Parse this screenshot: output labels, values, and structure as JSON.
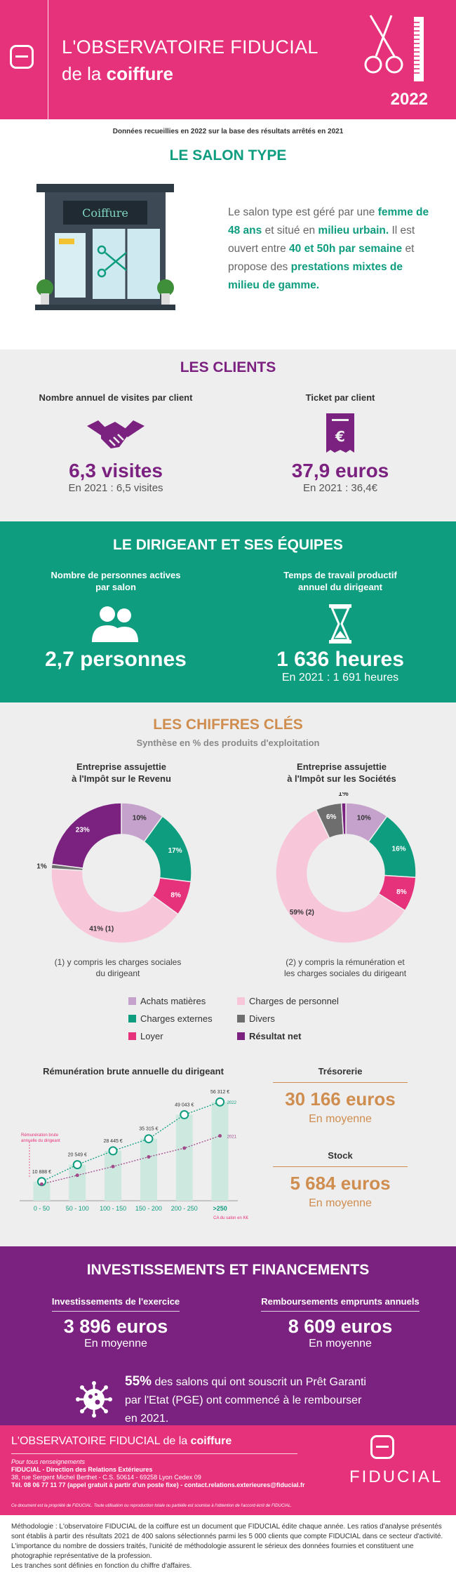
{
  "header": {
    "title_line1": "L'OBSERVATOIRE FIDUCIAL",
    "title_line2_prefix": "de la",
    "title_line2_bold": "coiffure",
    "year": "2022"
  },
  "source_note": "Données recueillies en 2022 sur la base des résultats arrêtés en 2021",
  "salon": {
    "title": "LE SALON TYPE",
    "sign": "Coiffure",
    "text_1": "Le salon type est géré par une",
    "bold_1": "femme de 48 ans",
    "text_2": "et situé en",
    "bold_2": "milieu urbain.",
    "text_3": "Il est ouvert entre",
    "bold_3": "40 et 50h par semaine",
    "text_4": "et propose des",
    "bold_4": "prestations mixtes de milieu de gamme."
  },
  "clients": {
    "title": "LES CLIENTS",
    "visits_label": "Nombre annuel de visites par client",
    "visits_value": "6,3 visites",
    "visits_prev": "En 2021 : 6,5 visites",
    "ticket_label": "Ticket par client",
    "ticket_value": "37,9 euros",
    "ticket_prev": "En 2021 : 36,4€"
  },
  "dirigeant": {
    "title": "LE DIRIGEANT ET SES ÉQUIPES",
    "staff_label_1": "Nombre de personnes actives",
    "staff_label_2": "par salon",
    "staff_value": "2,7 personnes",
    "time_label_1": "Temps de travail productif",
    "time_label_2": "annuel du dirigeant",
    "time_value": "1 636 heures",
    "time_prev": "En 2021 : 1 691 heures"
  },
  "chiffres": {
    "title": "LES CHIFFRES CLÉS",
    "subtitle": "Synthèse en % des produits d'exploitation",
    "ir_title_1": "Entreprise assujettie",
    "ir_title_2": "à l'Impôt sur le Revenu",
    "is_title_1": "Entreprise assujettie",
    "is_title_2": "à l'Impôt sur les Sociétés",
    "ir_note_1": "(1) y compris les charges sociales",
    "ir_note_2": "du dirigeant",
    "is_note_1": "(2) y compris la rémunération et",
    "is_note_2": "les charges sociales du dirigeant",
    "legend": {
      "achats": "Achats matières",
      "personnel": "Charges de personnel",
      "externes": "Charges externes",
      "divers": "Divers",
      "loyer": "Loyer",
      "resultat": "Résultat net"
    },
    "rem_title": "Rémunération brute annuelle du dirigeant",
    "treso_label": "Trésorerie",
    "treso_value": "30 166 euros",
    "treso_sub": "En moyenne",
    "stock_label": "Stock",
    "stock_value": "5 684 euros",
    "stock_sub": "En moyenne"
  },
  "chart_data": [
    {
      "type": "pie",
      "title": "Entreprise assujettie à l'Impôt sur le Revenu",
      "categories": [
        "Achats matières",
        "Charges externes",
        "Loyer",
        "Charges de personnel",
        "Divers",
        "Résultat net"
      ],
      "values": [
        10,
        17,
        8,
        41,
        1,
        23
      ],
      "labels": [
        "10%",
        "17%",
        "8%",
        "41% (1)",
        "1%",
        "23%"
      ],
      "colors": [
        "#c4a2cc",
        "#0f9d7f",
        "#e6317b",
        "#f7c6d9",
        "#6e6e6e",
        "#7b2180"
      ]
    },
    {
      "type": "pie",
      "title": "Entreprise assujettie à l'Impôt sur les Sociétés",
      "categories": [
        "Achats matières",
        "Charges externes",
        "Loyer",
        "Charges de personnel",
        "Divers",
        "Résultat net"
      ],
      "values": [
        10,
        16,
        8,
        59,
        6,
        1
      ],
      "labels": [
        "10%",
        "16%",
        "8%",
        "59% (2)",
        "6%",
        "1%"
      ],
      "colors": [
        "#c4a2cc",
        "#0f9d7f",
        "#e6317b",
        "#f7c6d9",
        "#6e6e6e",
        "#7b2180"
      ]
    },
    {
      "type": "bar",
      "title": "Rémunération brute annuelle du dirigeant",
      "categories": [
        "0 - 50",
        "50 - 100",
        "100 - 150",
        "150 - 200",
        "200 - 250",
        ">250"
      ],
      "xlabel": "CA du salon en K€",
      "series": [
        {
          "name": "2022",
          "values": [
            10888,
            20549,
            28445,
            35315,
            49043,
            56312
          ]
        },
        {
          "name": "2021",
          "values": [
            9500,
            14500,
            19500,
            25000,
            30000,
            37000
          ]
        }
      ],
      "value_labels": [
        "10 888 €",
        "20 549 €",
        "28 445 €",
        "35 315 €",
        "49 043 €",
        "56 312 €"
      ],
      "annotation": "Rémunération brute annuelle du dirigeant",
      "ylim": [
        0,
        60000
      ]
    }
  ],
  "invest": {
    "title": "INVESTISSEMENTS ET FINANCEMENTS",
    "inv_label": "Investissements de l'exercice",
    "inv_value": "3 896 euros",
    "inv_sub": "En moyenne",
    "remb_label": "Remboursements emprunts annuels",
    "remb_value": "8 609 euros",
    "remb_sub": "En moyenne",
    "pge_pct": "55%",
    "pge_text_1": "des salons qui ont souscrit un Prêt Garanti",
    "pge_text_2": "par l'Etat (PGE) ont commencé à le rembourser",
    "pge_text_3": "en 2021."
  },
  "footer": {
    "title_prefix": "L'OBSERVATOIRE FIDUCIAL de la",
    "title_bold": "coiffure",
    "info_1": "Pour tous renseignements",
    "info_2": "FIDUCIAL - Direction des Relations Extérieures",
    "info_3": "38, rue Sergent Michel Berthet - C.S. 50614 - 69258 Lyon Cedex 09",
    "info_4": "Tél. 08 06 77 11 77 (appel gratuit à partir d'un poste fixe) - contact.relations.exterieures@fiducial.fr",
    "legal": "Ce document est la propriété de FIDUCIAL. Toute utilisation ou reproduction totale ou partielle est soumise à l'obtention de l'accord écrit de FIDUCIAL.",
    "brand": "FIDUCIAL"
  },
  "methodo": {
    "line_1": "Méthodologie : L'observatoire FIDUCIAL de la coiffure est un document que FIDUCIAL édite chaque année. Les ratios d'analyse présentés sont établis à partir des résultats 2021 de 400 salons sélectionnés parmi les 5 000 clients que compte FIDUCIAL dans ce secteur d'activité. L'importance du nombre de dossiers traités, l'unicité de méthodologie assurent le sérieux des données fournies et constituent une photographie représentative de la profession.",
    "line_2": "Les tranches sont définies en fonction du chiffre d'affaires."
  }
}
